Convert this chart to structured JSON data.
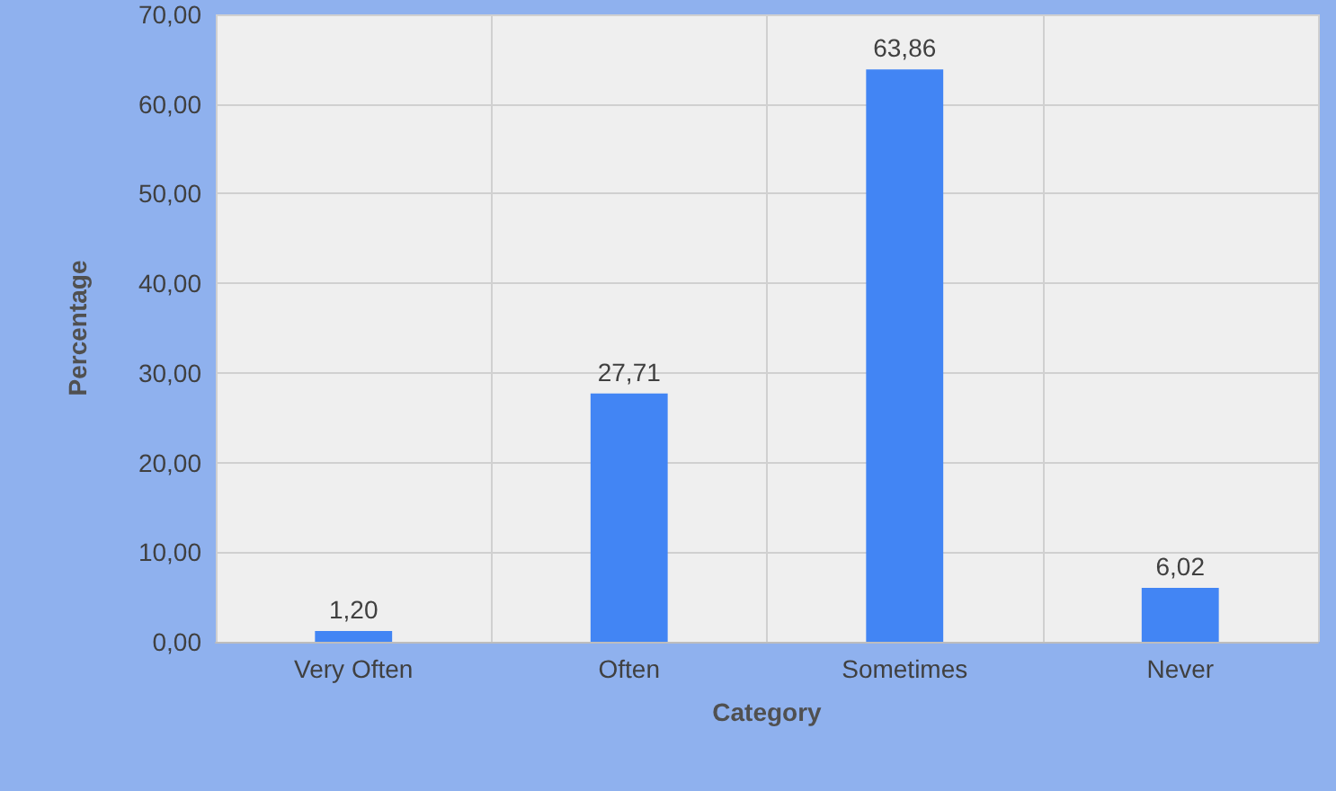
{
  "chart_data": {
    "type": "bar",
    "xlabel": "Category",
    "ylabel": "Percentage",
    "categories": [
      "Very Often",
      "Often",
      "Sometimes",
      "Never"
    ],
    "values": [
      1.2,
      27.71,
      63.86,
      6.02
    ],
    "value_labels": [
      "1,20",
      "27,71",
      "63,86",
      "6,02"
    ],
    "color": "#4285f4",
    "ylim": [
      0,
      70
    ],
    "yticks": [
      {
        "value": 0,
        "label": "0,00"
      },
      {
        "value": 10,
        "label": "10,00"
      },
      {
        "value": 20,
        "label": "20,00"
      },
      {
        "value": 30,
        "label": "30,00"
      },
      {
        "value": 40,
        "label": "40,00"
      },
      {
        "value": 50,
        "label": "50,00"
      },
      {
        "value": 60,
        "label": "60,00"
      },
      {
        "value": 70,
        "label": "70,00"
      }
    ],
    "grid": true
  }
}
